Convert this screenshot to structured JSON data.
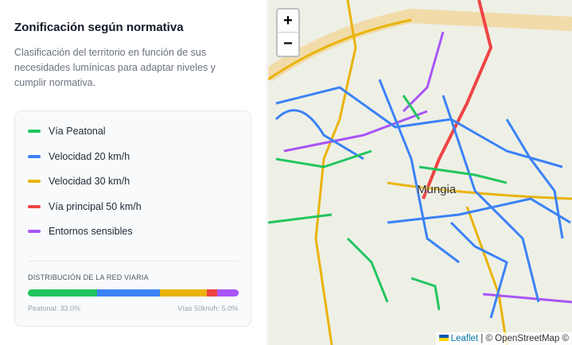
{
  "title": "Zonificación según normativa",
  "description": "Clasificación del territorio en función de sus necesidades lumínicas para adaptar niveles y cumplir normativa.",
  "legend": [
    {
      "label": "Vía Peatonal",
      "color": "#22c55e"
    },
    {
      "label": "Velocidad 20 km/h",
      "color": "#3b82f6"
    },
    {
      "label": "Velocidad 30 km/h",
      "color": "#eab308"
    },
    {
      "label": "Vía principal 50 km/h",
      "color": "#ef4444"
    },
    {
      "label": "Entornos sensibles",
      "color": "#a855f7"
    }
  ],
  "distribution": {
    "title": "DISTRIBUCIÓN DE LA RED VIARIA",
    "segments_percent": [
      33.0,
      29.5,
      22.5,
      5.0,
      10.0
    ],
    "left_label": "Peatonal: 33.0%",
    "right_label": "Vías 50km/h: 5.0%"
  },
  "map": {
    "zoom_in": "+",
    "zoom_out": "−",
    "town_label": "Mungia",
    "attribution_link": "Leaflet",
    "attribution_text": " | © OpenStreetMap ©"
  }
}
